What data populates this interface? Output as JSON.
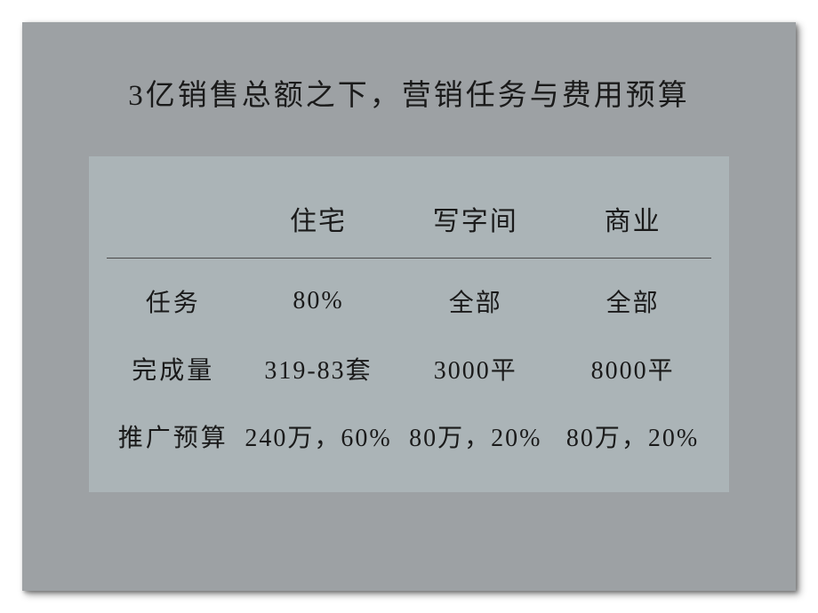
{
  "slide": {
    "title": "3亿销售总额之下，营销任务与费用预算",
    "background_color": "#9da1a4",
    "table_background": "#abb4b7",
    "text_color": "#1a1a1a",
    "divider_color": "#4a4a4a"
  },
  "table": {
    "type": "table",
    "columns": [
      "",
      "住宅",
      "写字间",
      "商业"
    ],
    "column_widths": [
      "22%",
      "26%",
      "26%",
      "26%"
    ],
    "header_fontsize": 30,
    "cell_fontsize": 28,
    "rows": [
      {
        "label": "任务",
        "values": [
          "80%",
          "全部",
          "全部"
        ]
      },
      {
        "label": "完成量",
        "values": [
          "319-83套",
          "3000平",
          "8000平"
        ]
      },
      {
        "label": "推广预算",
        "values": [
          "240万，60%",
          "80万，20%",
          "80万，20%"
        ]
      }
    ]
  }
}
